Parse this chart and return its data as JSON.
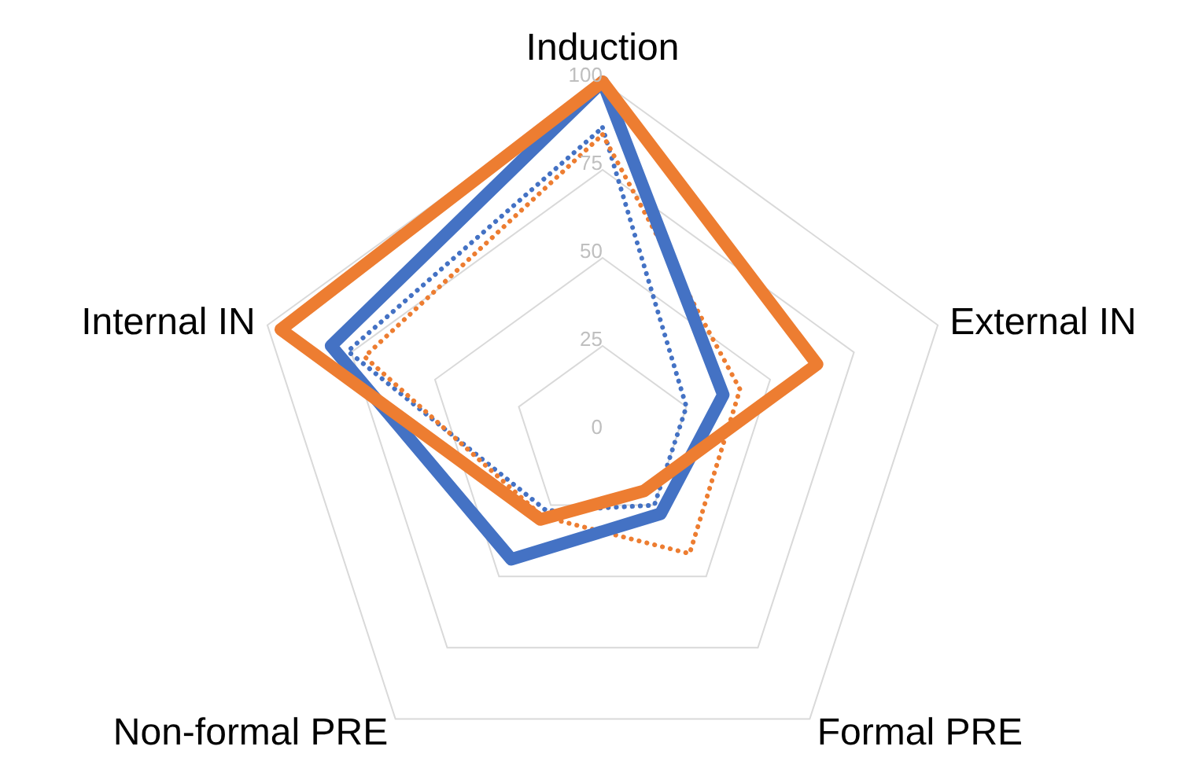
{
  "chart_data": {
    "type": "radar",
    "categories": [
      "Induction",
      "External IN",
      "Formal PRE",
      "Non-formal PRE",
      "Internal IN"
    ],
    "series": [
      {
        "color": "#4472c4",
        "line_style": "dotted",
        "values": [
          87,
          25,
          25,
          27,
          76
        ]
      },
      {
        "color": "#ed7d31",
        "line_style": "dotted",
        "values": [
          85,
          41,
          42,
          29,
          71
        ]
      },
      {
        "color": "#4472c4",
        "line_style": "solid",
        "values": [
          100,
          36,
          28,
          44,
          81
        ]
      },
      {
        "color": "#ed7d31",
        "line_style": "solid",
        "values": [
          100,
          64,
          20,
          30,
          96
        ]
      }
    ],
    "ylim": [
      0,
      100
    ],
    "yticks": [
      0,
      25,
      50,
      75,
      100
    ],
    "grid": true,
    "marker": "none"
  }
}
